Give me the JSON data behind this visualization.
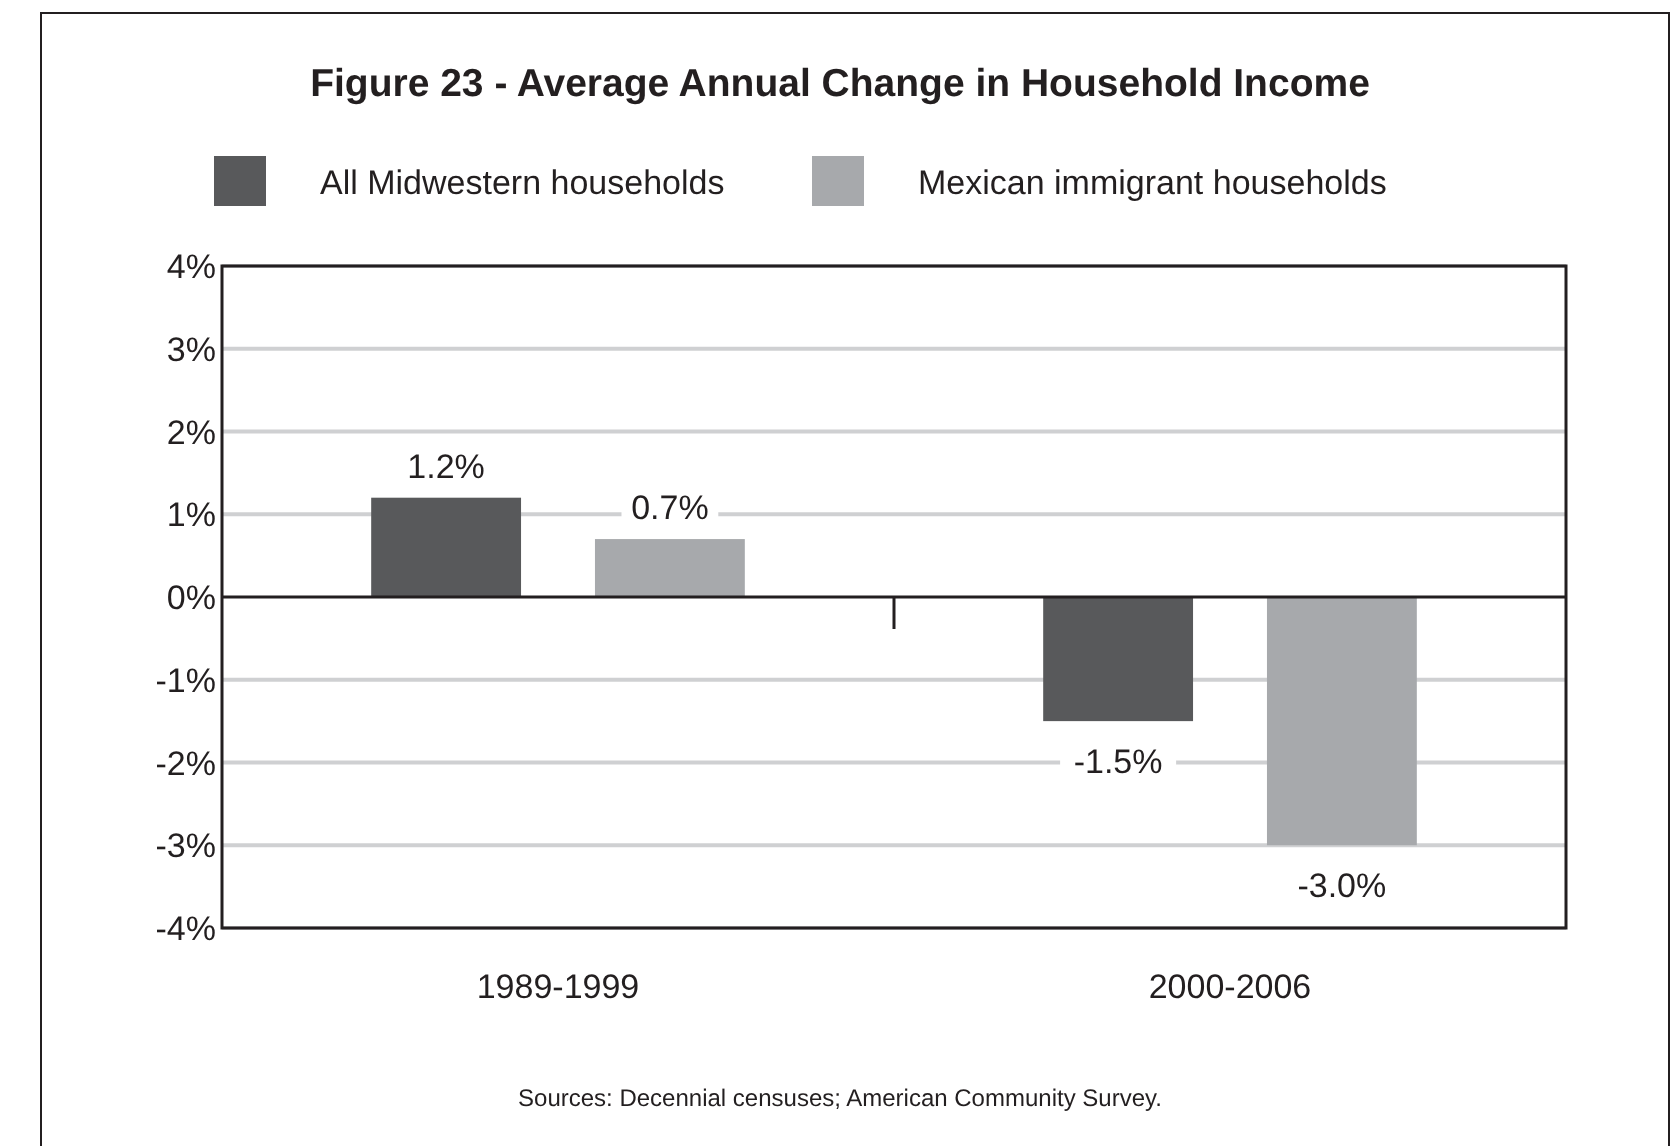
{
  "chart_data": {
    "type": "bar",
    "title": "Figure 23 - Average Annual Change in Household Income",
    "categories": [
      "1989-1999",
      "2000-2006"
    ],
    "series": [
      {
        "name": "All Midwestern households",
        "color": "#58595b",
        "values": [
          1.2,
          -1.5
        ],
        "value_labels": [
          "1.2%",
          "-1.5%"
        ]
      },
      {
        "name": "Mexican immigrant households",
        "color": "#a7a9ac",
        "values": [
          0.7,
          -3.0
        ],
        "value_labels": [
          "0.7%",
          "-3.0%"
        ]
      }
    ],
    "ylim": [
      -4,
      4
    ],
    "yticks": [
      {
        "value": -4,
        "label": "-4%"
      },
      {
        "value": -3,
        "label": "-3%"
      },
      {
        "value": -2,
        "label": "-2%"
      },
      {
        "value": -1,
        "label": "-1%"
      },
      {
        "value": 0,
        "label": "0%"
      },
      {
        "value": 1,
        "label": "1%"
      },
      {
        "value": 2,
        "label": "2%"
      },
      {
        "value": 3,
        "label": "3%"
      },
      {
        "value": 4,
        "label": "4%"
      }
    ],
    "grid": "y",
    "legend": "top",
    "annotations": [
      "Sources: Decennial censuses; American Community Survey."
    ]
  }
}
